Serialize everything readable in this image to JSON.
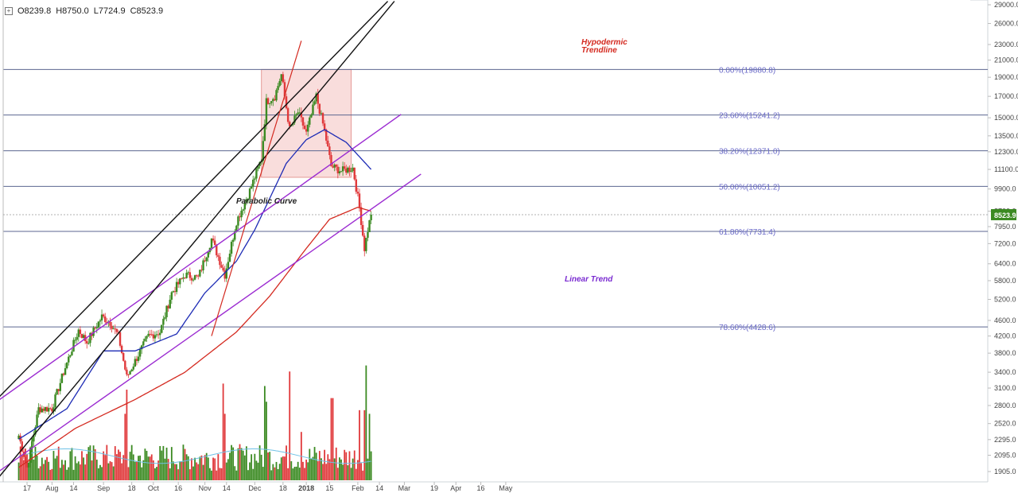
{
  "ohlc": {
    "o": "O8239.8",
    "h": "H8750.0",
    "l": "L7724.9",
    "c": "C8523.9"
  },
  "last_price_label": "8523.9",
  "colors": {
    "up": "#3b8a22",
    "down": "#e0393b",
    "ma50": "#1d2bb5",
    "ma200": "#d42a20",
    "fib_text": "#6b6bc8",
    "trend_purple": "#9b2bd1",
    "hypo_red": "#d42a20",
    "box_fill": "#f7d2d0"
  },
  "annotations": {
    "hypodermic": "Hypodermic\nTrendline",
    "parabolic": "Parabolic Curve",
    "linear": "Linear Trend"
  },
  "chart_data": {
    "type": "candlestick",
    "title": "",
    "xlabel": "",
    "ylabel": "",
    "y_scale": "log",
    "ylim": [
      1840,
      29600
    ],
    "y_ticks": [
      "29000.0",
      "26000.0",
      "23000.0",
      "21000.0",
      "19000.0",
      "17000.0",
      "15000.0",
      "13500.0",
      "12300.0",
      "11100.0",
      "9900.0",
      "8700.0",
      "7950.0",
      "7200.0",
      "6400.0",
      "5800.0",
      "5200.0",
      "4600.0",
      "4200.0",
      "3800.0",
      "3400.0",
      "3100.0",
      "2800.0",
      "2520.0",
      "2295.0",
      "2095.0",
      "1905.0"
    ],
    "x_ticks": [
      "17",
      "Aug",
      "14",
      "Sep",
      "18",
      "Oct",
      "16",
      "Nov",
      "14",
      "Dec",
      "18",
      "2018",
      "15",
      "Feb",
      "14",
      "Mar",
      "19",
      "Apr",
      "16",
      "May"
    ],
    "fib_levels": [
      {
        "label": "0.00%(19880.8)",
        "value": 19880.8
      },
      {
        "label": "23.60%(15241.2)",
        "value": 15241.2
      },
      {
        "label": "38.20%(12371.0)",
        "value": 12371.0
      },
      {
        "label": "50.00%(10051.2)",
        "value": 10051.2
      },
      {
        "label": "61.80%(7731.4)",
        "value": 7731.4
      },
      {
        "label": "78.60%(4428.6)",
        "value": 4428.6
      }
    ],
    "last_price": 8523.9,
    "price_anchors": [
      {
        "date": "2017-07-12",
        "price": 2350
      },
      {
        "date": "2017-07-17",
        "price": 1950
      },
      {
        "date": "2017-07-24",
        "price": 2750
      },
      {
        "date": "2017-08-01",
        "price": 2750
      },
      {
        "date": "2017-08-08",
        "price": 3400
      },
      {
        "date": "2017-08-17",
        "price": 4350
      },
      {
        "date": "2017-08-22",
        "price": 4050
      },
      {
        "date": "2017-08-31",
        "price": 4700
      },
      {
        "date": "2017-09-05",
        "price": 4550
      },
      {
        "date": "2017-09-10",
        "price": 4200
      },
      {
        "date": "2017-09-15",
        "price": 3300
      },
      {
        "date": "2017-09-21",
        "price": 3700
      },
      {
        "date": "2017-09-28",
        "price": 4200
      },
      {
        "date": "2017-10-05",
        "price": 4300
      },
      {
        "date": "2017-10-12",
        "price": 5400
      },
      {
        "date": "2017-10-20",
        "price": 6000
      },
      {
        "date": "2017-10-28",
        "price": 5900
      },
      {
        "date": "2017-11-05",
        "price": 7400
      },
      {
        "date": "2017-11-10",
        "price": 6500
      },
      {
        "date": "2017-11-13",
        "price": 6000
      },
      {
        "date": "2017-11-20",
        "price": 8200
      },
      {
        "date": "2017-11-28",
        "price": 9800
      },
      {
        "date": "2017-12-05",
        "price": 11800
      },
      {
        "date": "2017-12-08",
        "price": 16500
      },
      {
        "date": "2017-12-13",
        "price": 17000
      },
      {
        "date": "2017-12-17",
        "price": 19300
      },
      {
        "date": "2017-12-22",
        "price": 14000
      },
      {
        "date": "2017-12-27",
        "price": 15500
      },
      {
        "date": "2018-01-01",
        "price": 13700
      },
      {
        "date": "2018-01-07",
        "price": 17000
      },
      {
        "date": "2018-01-12",
        "price": 13900
      },
      {
        "date": "2018-01-16",
        "price": 11300
      },
      {
        "date": "2018-01-22",
        "price": 11000
      },
      {
        "date": "2018-01-29",
        "price": 11200
      },
      {
        "date": "2018-02-02",
        "price": 8900
      },
      {
        "date": "2018-02-05",
        "price": 7000
      },
      {
        "date": "2018-02-07",
        "price": 7800
      },
      {
        "date": "2018-02-09",
        "price": 8523.9
      }
    ],
    "ma50_anchors": [
      {
        "date": "2017-07-12",
        "price": 2300
      },
      {
        "date": "2017-08-10",
        "price": 2750
      },
      {
        "date": "2017-09-01",
        "price": 3850
      },
      {
        "date": "2017-09-20",
        "price": 3850
      },
      {
        "date": "2017-10-15",
        "price": 4250
      },
      {
        "date": "2017-11-01",
        "price": 5400
      },
      {
        "date": "2017-11-20",
        "price": 6500
      },
      {
        "date": "2017-12-01",
        "price": 7800
      },
      {
        "date": "2017-12-20",
        "price": 11500
      },
      {
        "date": "2018-01-01",
        "price": 13200
      },
      {
        "date": "2018-01-12",
        "price": 14000
      },
      {
        "date": "2018-01-25",
        "price": 13000
      },
      {
        "date": "2018-02-09",
        "price": 11100
      }
    ],
    "ma200_anchors": [
      {
        "date": "2017-07-12",
        "price": 1950
      },
      {
        "date": "2017-08-15",
        "price": 2450
      },
      {
        "date": "2017-09-20",
        "price": 2900
      },
      {
        "date": "2017-10-20",
        "price": 3400
      },
      {
        "date": "2017-11-20",
        "price": 4300
      },
      {
        "date": "2017-12-10",
        "price": 5300
      },
      {
        "date": "2018-01-01",
        "price": 7000
      },
      {
        "date": "2018-01-15",
        "price": 8300
      },
      {
        "date": "2018-02-01",
        "price": 8900
      },
      {
        "date": "2018-02-09",
        "price": 8700
      }
    ],
    "volume_scale_max": 100,
    "volume_spikes": [
      {
        "date": "2017-07-17",
        "v": 22
      },
      {
        "date": "2017-07-20",
        "v": 35
      },
      {
        "date": "2017-09-14",
        "v": 55
      },
      {
        "date": "2017-09-15",
        "v": 75
      },
      {
        "date": "2017-11-12",
        "v": 80
      },
      {
        "date": "2017-11-13",
        "v": 55
      },
      {
        "date": "2017-12-07",
        "v": 78
      },
      {
        "date": "2017-12-08",
        "v": 65
      },
      {
        "date": "2017-12-22",
        "v": 90
      },
      {
        "date": "2017-12-29",
        "v": 40
      },
      {
        "date": "2018-01-16",
        "v": 68
      },
      {
        "date": "2018-01-17",
        "v": 68
      },
      {
        "date": "2018-02-02",
        "v": 58
      },
      {
        "date": "2018-02-05",
        "v": 58
      },
      {
        "date": "2018-02-06",
        "v": 95
      },
      {
        "date": "2018-02-08",
        "v": 55
      }
    ],
    "drawings": {
      "box": {
        "date1": "2017-12-05",
        "price1": 19880.8,
        "date2": "2018-01-28",
        "price2": 10600
      },
      "hypodermic_line": {
        "date1": "2017-11-05",
        "price1": 4200,
        "date2": "2017-12-29",
        "price2": 23500
      },
      "parabolic_line_1": {
        "date1": "2017-06-28",
        "price1": 2880,
        "date2": "2018-02-19",
        "price2": 29600
      },
      "parabolic_line_2": {
        "date1": "2017-06-28",
        "price1": 1800,
        "date2": "2018-02-23",
        "price2": 29600
      },
      "purple_upper": {
        "date1": "2017-06-28",
        "price1": 2850,
        "date2": "2018-02-27",
        "price2": 15300
      },
      "purple_lower": {
        "date1": "2017-06-28",
        "price1": 1880,
        "date2": "2018-03-11",
        "price2": 10800
      }
    }
  }
}
